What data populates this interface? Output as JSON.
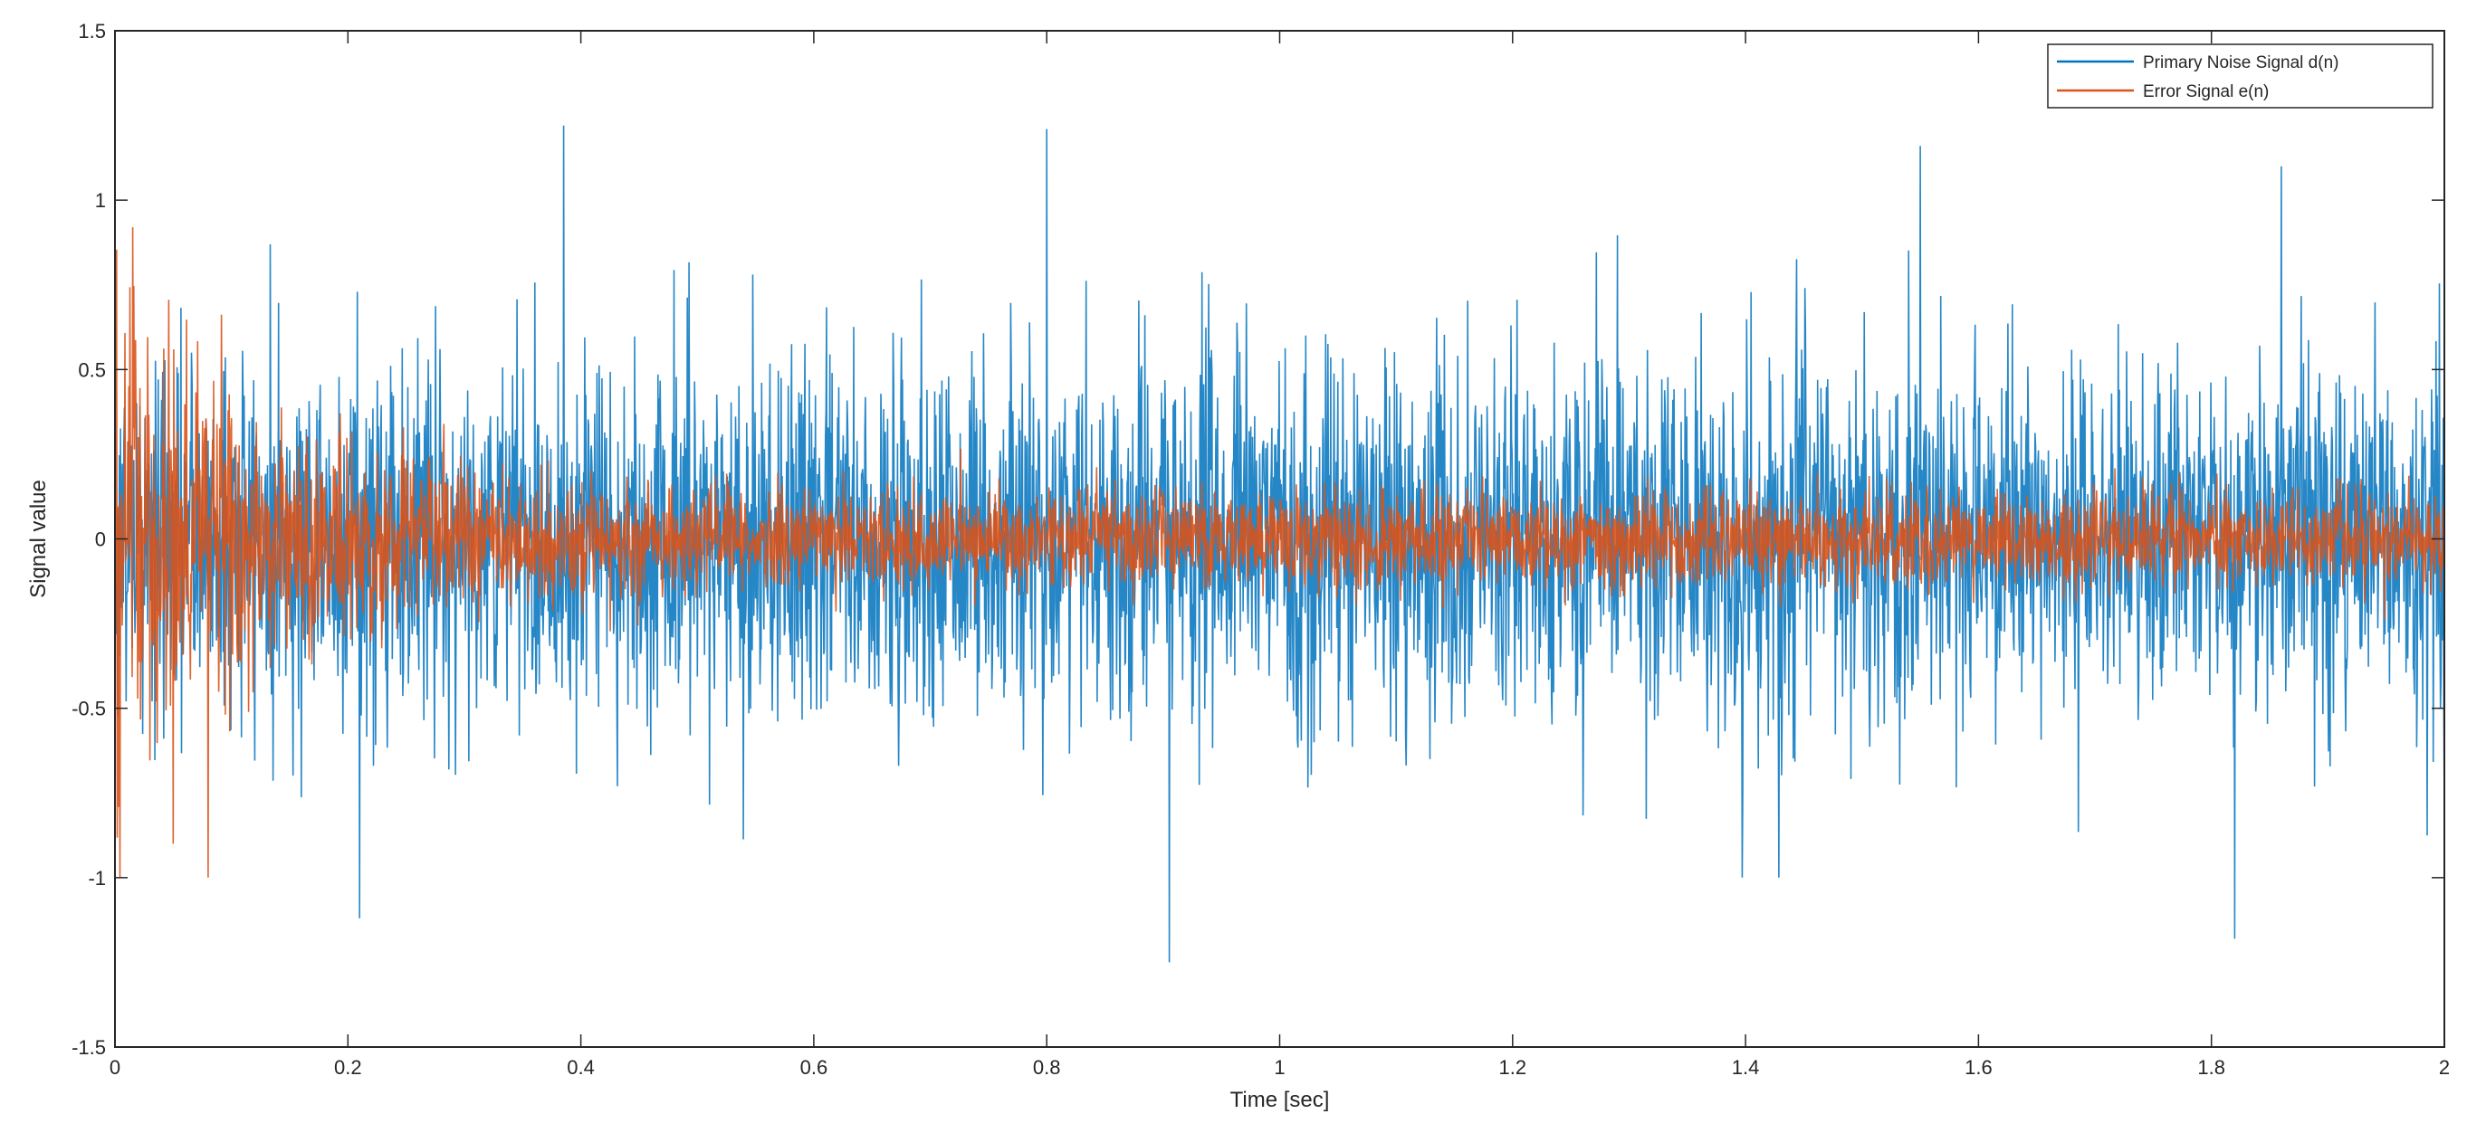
{
  "chart_data": {
    "type": "line",
    "title": "",
    "xlabel": "Time [sec]",
    "ylabel": "Signal value",
    "xlim": [
      0,
      2
    ],
    "ylim": [
      -1.5,
      1.5
    ],
    "xticks": [
      0,
      0.2,
      0.4,
      0.6,
      0.8,
      1,
      1.2,
      1.4,
      1.6,
      1.8,
      2
    ],
    "xtick_labels": [
      "0",
      "0.2",
      "0.4",
      "0.6",
      "0.8",
      "1",
      "1.2",
      "1.4",
      "1.6",
      "1.8",
      "2"
    ],
    "yticks": [
      -1.5,
      -1,
      -0.5,
      0,
      0.5,
      1,
      1.5
    ],
    "ytick_labels": [
      "-1.5",
      "-1",
      "-0.5",
      "0",
      "0.5",
      "1",
      "1.5"
    ],
    "grid": false,
    "legend_position": "top-right",
    "series": [
      {
        "name": "Primary Noise Signal d(n)",
        "color": "#0072BD",
        "description_values": "random noise, envelope about ±0.5 with peaks up to ~±1.25 across 0–2 s",
        "peaks": [
          {
            "x": 0.21,
            "y": -1.12
          },
          {
            "x": 0.385,
            "y": 1.22
          },
          {
            "x": 0.8,
            "y": 1.21
          },
          {
            "x": 0.905,
            "y": -1.25
          },
          {
            "x": 1.55,
            "y": 1.16
          },
          {
            "x": 1.82,
            "y": -1.18
          },
          {
            "x": 1.86,
            "y": 1.1
          }
        ]
      },
      {
        "name": "Error Signal e(n)",
        "color": "#D95319",
        "description_values": "large at start (~±1.0 near t=0–0.1 s), decaying to about ±0.15 after ~0.5 s",
        "peaks": [
          {
            "x": 0.015,
            "y": 0.92
          },
          {
            "x": 0.08,
            "y": -1.0
          },
          {
            "x": 0.05,
            "y": -0.9
          }
        ]
      }
    ]
  }
}
